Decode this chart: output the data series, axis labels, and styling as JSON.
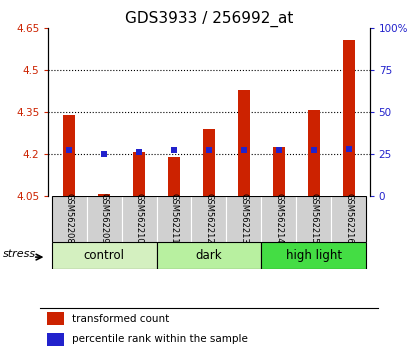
{
  "title": "GDS3933 / 256992_at",
  "samples": [
    "GSM562208",
    "GSM562209",
    "GSM562210",
    "GSM562211",
    "GSM562212",
    "GSM562213",
    "GSM562214",
    "GSM562215",
    "GSM562216"
  ],
  "red_values": [
    4.34,
    4.06,
    4.21,
    4.19,
    4.29,
    4.43,
    4.225,
    4.36,
    4.61
  ],
  "blue_values": [
    4.215,
    4.201,
    4.21,
    4.215,
    4.215,
    4.215,
    4.215,
    4.215,
    4.22
  ],
  "y_min": 4.05,
  "y_max": 4.65,
  "y_ticks_left": [
    4.05,
    4.2,
    4.35,
    4.5,
    4.65
  ],
  "y_ticks_right_pos": [
    4.05,
    4.2,
    4.35,
    4.5,
    4.65
  ],
  "y_ticks_right_labels": [
    "0",
    "25",
    "50",
    "75",
    "100%"
  ],
  "groups": [
    {
      "label": "control",
      "indices": [
        0,
        1,
        2
      ],
      "color": "#d4f0c0"
    },
    {
      "label": "dark",
      "indices": [
        3,
        4,
        5
      ],
      "color": "#b8f0a0"
    },
    {
      "label": "high light",
      "indices": [
        6,
        7,
        8
      ],
      "color": "#44dd44"
    }
  ],
  "bar_color": "#cc2200",
  "dot_color": "#2222cc",
  "bar_width": 0.35,
  "dot_size": 18,
  "title_fontsize": 11,
  "tick_fontsize": 7.5,
  "sample_fontsize": 6,
  "group_fontsize": 8.5,
  "legend_fontsize": 7.5,
  "stress_label": "stress",
  "color_left": "#cc2200",
  "color_right": "#2222cc",
  "bg_gray": "#d0d0d0",
  "grid_linestyle": ":",
  "grid_linewidth": 0.8,
  "grid_color": "black",
  "grid_lines": [
    4.2,
    4.35,
    4.5
  ]
}
